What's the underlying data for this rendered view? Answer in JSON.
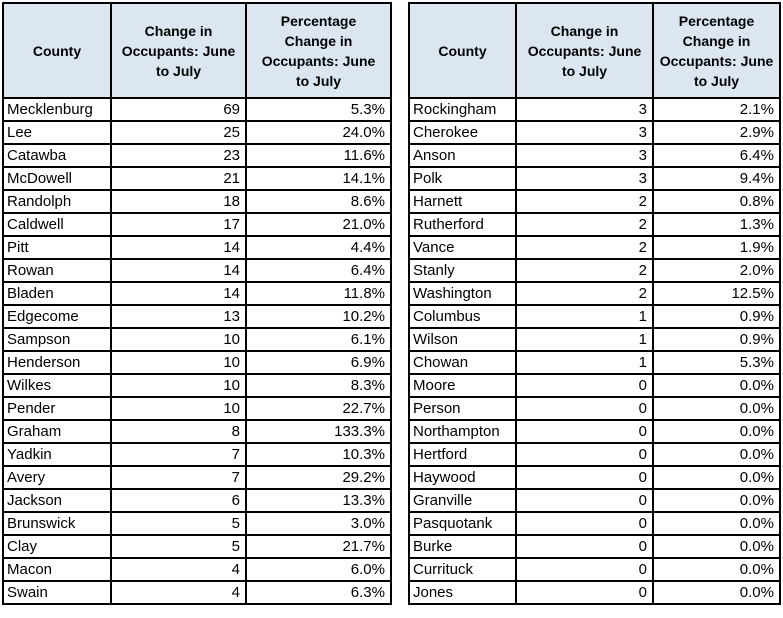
{
  "colors": {
    "header_fill": "#DCE6F1",
    "border": "#000000",
    "text": "#000000",
    "background": "#FFFFFF"
  },
  "column_headers": {
    "county": "County",
    "change": "Change in\nOccupants: June\nto July",
    "pct_change": "Percentage\nChange in\nOccupants: June\nto July"
  },
  "tables": [
    {
      "name": "county-change-table-left",
      "rows": [
        [
          "Mecklenburg",
          "69",
          "5.3%"
        ],
        [
          "Lee",
          "25",
          "24.0%"
        ],
        [
          "Catawba",
          "23",
          "11.6%"
        ],
        [
          "McDowell",
          "21",
          "14.1%"
        ],
        [
          "Randolph",
          "18",
          "8.6%"
        ],
        [
          "Caldwell",
          "17",
          "21.0%"
        ],
        [
          "Pitt",
          "14",
          "4.4%"
        ],
        [
          "Rowan",
          "14",
          "6.4%"
        ],
        [
          "Bladen",
          "14",
          "11.8%"
        ],
        [
          "Edgecome",
          "13",
          "10.2%"
        ],
        [
          "Sampson",
          "10",
          "6.1%"
        ],
        [
          "Henderson",
          "10",
          "6.9%"
        ],
        [
          "Wilkes",
          "10",
          "8.3%"
        ],
        [
          "Pender",
          "10",
          "22.7%"
        ],
        [
          "Graham",
          "8",
          "133.3%"
        ],
        [
          "Yadkin",
          "7",
          "10.3%"
        ],
        [
          "Avery",
          "7",
          "29.2%"
        ],
        [
          "Jackson",
          "6",
          "13.3%"
        ],
        [
          "Brunswick",
          "5",
          "3.0%"
        ],
        [
          "Clay",
          "5",
          "21.7%"
        ],
        [
          "Macon",
          "4",
          "6.0%"
        ],
        [
          "Swain",
          "4",
          "6.3%"
        ]
      ]
    },
    {
      "name": "county-change-table-right",
      "rows": [
        [
          "Rockingham",
          "3",
          "2.1%"
        ],
        [
          "Cherokee",
          "3",
          "2.9%"
        ],
        [
          "Anson",
          "3",
          "6.4%"
        ],
        [
          "Polk",
          "3",
          "9.4%"
        ],
        [
          "Harnett",
          "2",
          "0.8%"
        ],
        [
          "Rutherford",
          "2",
          "1.3%"
        ],
        [
          "Vance",
          "2",
          "1.9%"
        ],
        [
          "Stanly",
          "2",
          "2.0%"
        ],
        [
          "Washington",
          "2",
          "12.5%"
        ],
        [
          "Columbus",
          "1",
          "0.9%"
        ],
        [
          "Wilson",
          "1",
          "0.9%"
        ],
        [
          "Chowan",
          "1",
          "5.3%"
        ],
        [
          "Moore",
          "0",
          "0.0%"
        ],
        [
          "Person",
          "0",
          "0.0%"
        ],
        [
          "Northampton",
          "0",
          "0.0%"
        ],
        [
          "Hertford",
          "0",
          "0.0%"
        ],
        [
          "Haywood",
          "0",
          "0.0%"
        ],
        [
          "Granville",
          "0",
          "0.0%"
        ],
        [
          "Pasquotank",
          "0",
          "0.0%"
        ],
        [
          "Burke",
          "0",
          "0.0%"
        ],
        [
          "Currituck",
          "0",
          "0.0%"
        ],
        [
          "Jones",
          "0",
          "0.0%"
        ]
      ]
    }
  ]
}
